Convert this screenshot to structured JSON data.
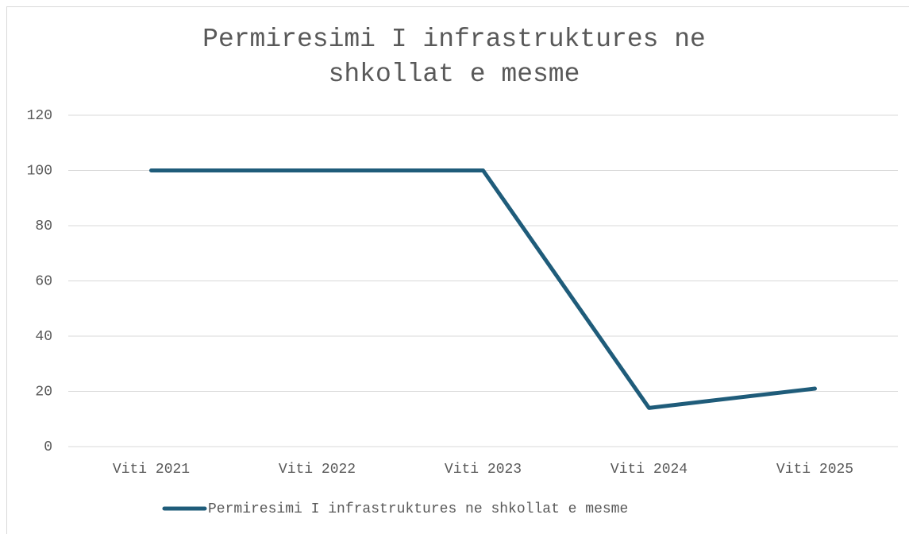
{
  "chart_data": {
    "type": "line",
    "title": "Permiresimi I infrastruktures ne shkollat e mesme",
    "categories": [
      "Viti 2021",
      "Viti 2022",
      "Viti 2023",
      "Viti 2024",
      "Viti 2025"
    ],
    "series": [
      {
        "name": "Permiresimi I infrastruktures ne shkollat e mesme",
        "color": "#1f5c7a",
        "values": [
          100,
          100,
          100,
          14,
          21
        ]
      }
    ],
    "ylim": [
      0,
      120
    ],
    "yticks": [
      0,
      20,
      40,
      60,
      80,
      100,
      120
    ],
    "grid": true,
    "legend": "bottom"
  }
}
